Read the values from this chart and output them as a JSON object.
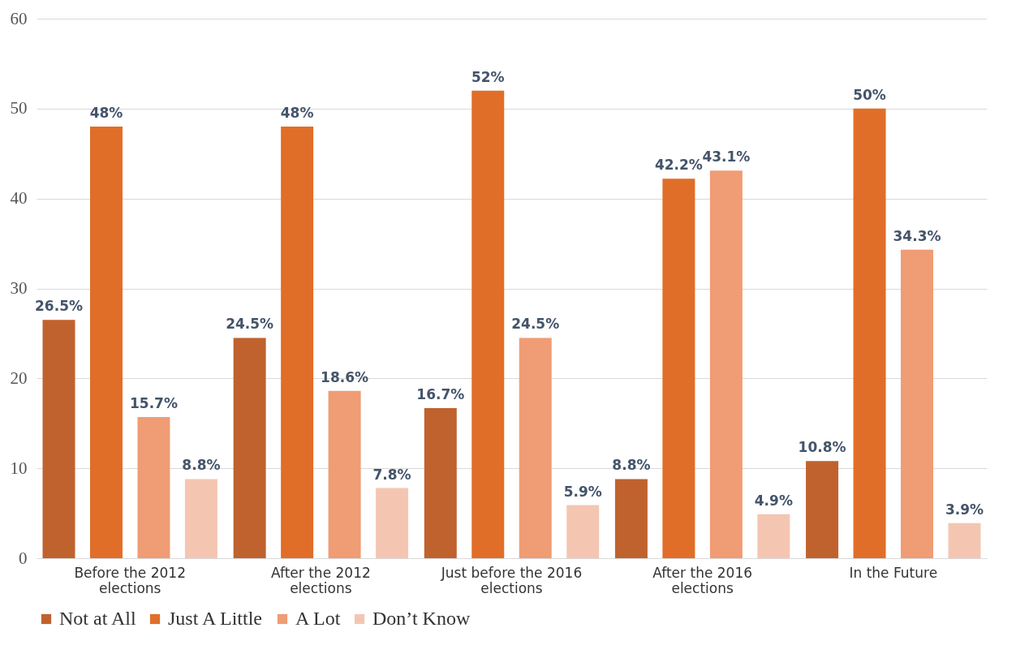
{
  "chart_data": {
    "type": "bar",
    "categories": [
      "Before the 2012 elections",
      "After the 2012 elections",
      "Just before the 2016 elections",
      "After the 2016 elections",
      "In the Future"
    ],
    "series": [
      {
        "name": "Not at All",
        "color": "#c0622e",
        "values": [
          26.5,
          24.5,
          16.7,
          8.8,
          10.8
        ],
        "value_labels": [
          "26.5%",
          "24.5%",
          "16.7%",
          "8.8%",
          "10.8%"
        ]
      },
      {
        "name": "Just A Little",
        "color": "#e06e28",
        "values": [
          48,
          48,
          52,
          42.2,
          50
        ],
        "value_labels": [
          "48%",
          "48%",
          "52%",
          "42.2%",
          "50%"
        ]
      },
      {
        "name": "A Lot",
        "color": "#f09c74",
        "values": [
          15.7,
          18.6,
          24.5,
          43.1,
          34.3
        ],
        "value_labels": [
          "15.7%",
          "18.6%",
          "24.5%",
          "43.1%",
          "34.3%"
        ]
      },
      {
        "name": "Don’t Know",
        "color": "#f4c6b2",
        "values": [
          8.8,
          7.8,
          5.9,
          4.9,
          3.9
        ],
        "value_labels": [
          "8.8%",
          "7.8%",
          "5.9%",
          "4.9%",
          "3.9%"
        ]
      }
    ],
    "ylim": [
      0,
      60
    ],
    "yticks": [
      0,
      10,
      20,
      30,
      40,
      50,
      60
    ],
    "grid": "y",
    "legend": "bottom"
  }
}
